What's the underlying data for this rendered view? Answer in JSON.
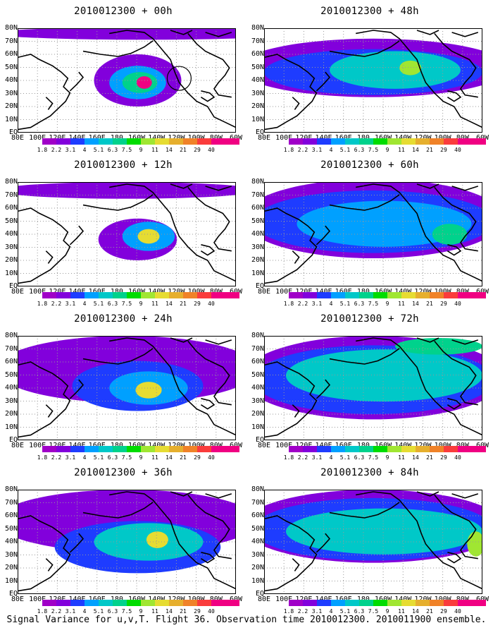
{
  "chart_data": {
    "type": "heatmap",
    "colorbar": {
      "levels": [
        "1.8",
        "2.2",
        "3.1",
        "4",
        "5.1",
        "6.3",
        "7.5",
        "9",
        "11",
        "14",
        "21",
        "29",
        "40"
      ],
      "colors": [
        "#a000c8",
        "#8200dc",
        "#1e3cff",
        "#00a0ff",
        "#00c8c8",
        "#00d28c",
        "#00dc00",
        "#a0e632",
        "#e6dc32",
        "#e6af2d",
        "#f08228",
        "#fa3c3c",
        "#f00082"
      ]
    },
    "xticks": [
      "80E",
      "100E",
      "120E",
      "140E",
      "160E",
      "180",
      "160W",
      "140W",
      "120W",
      "100W",
      "80W",
      "60W"
    ],
    "yticks": [
      "80N",
      "70N",
      "60N",
      "50N",
      "40N",
      "30N",
      "20N",
      "10N",
      "EQ"
    ],
    "panels": [
      {
        "title": "2010012300 + 00h",
        "lead_hours": 0
      },
      {
        "title": "2010012300 + 48h",
        "lead_hours": 48
      },
      {
        "title": "2010012300 + 12h",
        "lead_hours": 12
      },
      {
        "title": "2010012300 + 60h",
        "lead_hours": 60
      },
      {
        "title": "2010012300 + 24h",
        "lead_hours": 24
      },
      {
        "title": "2010012300 + 72h",
        "lead_hours": 72
      },
      {
        "title": "2010012300 + 36h",
        "lead_hours": 36
      },
      {
        "title": "2010012300 + 84h",
        "lead_hours": 84
      }
    ]
  },
  "caption": "Signal Variance for u,v,T. Flight 36. Observation time 2010012300. 2010011900 ensemble."
}
